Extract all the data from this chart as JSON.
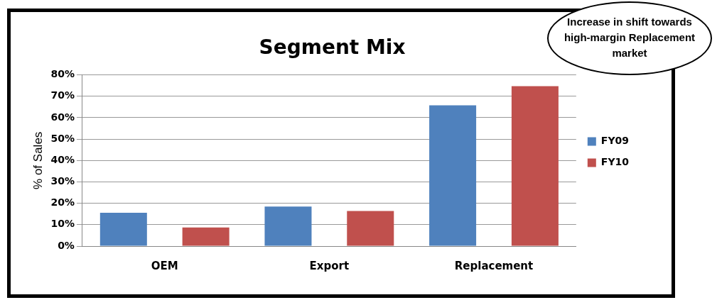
{
  "chart_data": {
    "type": "bar",
    "title": "Segment Mix",
    "ylabel": "% of Sales",
    "categories": [
      "OEM",
      "Export",
      "Replacement"
    ],
    "series": [
      {
        "name": "FY09",
        "color": "#4f81bd",
        "values": [
          15.6,
          18.5,
          65.8
        ]
      },
      {
        "name": "FY10",
        "color": "#c0504d",
        "values": [
          8.7,
          16.4,
          74.7
        ]
      }
    ],
    "ylim": [
      0,
      80
    ],
    "yticks": [
      {
        "value": 0,
        "label": "0%"
      },
      {
        "value": 10,
        "label": "10%"
      },
      {
        "value": 20,
        "label": "20%"
      },
      {
        "value": 30,
        "label": "30%"
      },
      {
        "value": 40,
        "label": "40%"
      },
      {
        "value": 50,
        "label": "50%"
      },
      {
        "value": 60,
        "label": "60%"
      },
      {
        "value": 70,
        "label": "70%"
      },
      {
        "value": 80,
        "label": "80%"
      }
    ],
    "grid": "y",
    "legend": "right",
    "annotations": [
      "Increase in shift towards high-margin Replacement market"
    ]
  }
}
